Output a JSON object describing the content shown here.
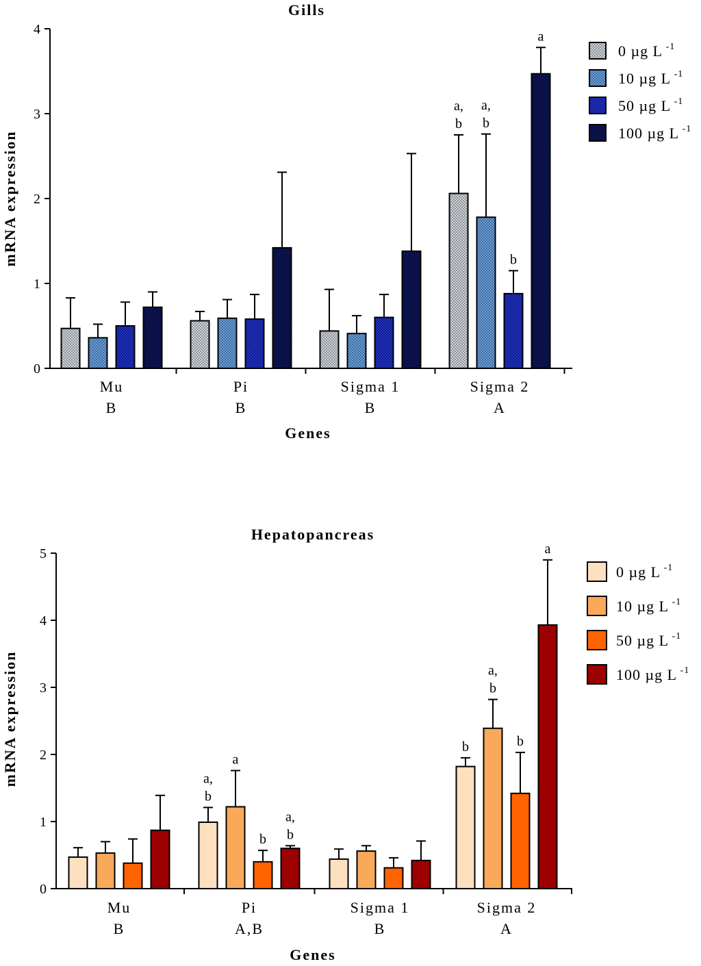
{
  "palettes": {
    "gills": [
      "#cfd3d6",
      "#5f8fc4",
      "#1c2bb0",
      "#0b1350"
    ],
    "hepato": [
      "#fde0c0",
      "#f9a95a",
      "#ff6400",
      "#9c0000"
    ]
  },
  "chart_data": [
    {
      "type": "bar",
      "title": "Gills",
      "xlabel": "Genes",
      "ylabel": "mRNA expression",
      "ylim": [
        0,
        4
      ],
      "yticks": [
        "0",
        "1",
        "2",
        "3",
        "4"
      ],
      "legend_position": "top-right",
      "legend": [
        {
          "prefix": "0 µg L",
          "sup": "-1"
        },
        {
          "prefix": "10 µg L",
          "sup": "-1"
        },
        {
          "prefix": "50 µg L",
          "sup": "-1"
        },
        {
          "prefix": "100 µg L",
          "sup": "-1"
        }
      ],
      "categories": [
        "Mu",
        "Pi",
        "Sigma 1",
        "Sigma 2"
      ],
      "category_groups": [
        "B",
        "B",
        "B",
        "A"
      ],
      "series": [
        {
          "name": "0 µg L-1",
          "values": [
            0.47,
            0.56,
            0.44,
            2.06
          ],
          "errors": [
            0.36,
            0.11,
            0.49,
            0.69
          ],
          "labels": [
            "",
            "",
            "",
            "a,|b"
          ]
        },
        {
          "name": "10 µg L-1",
          "values": [
            0.36,
            0.59,
            0.41,
            1.78
          ],
          "errors": [
            0.16,
            0.22,
            0.21,
            0.98
          ],
          "labels": [
            "",
            "",
            "",
            "a,|b"
          ]
        },
        {
          "name": "50 µg L-1",
          "values": [
            0.5,
            0.58,
            0.6,
            0.88
          ],
          "errors": [
            0.28,
            0.29,
            0.27,
            0.27
          ],
          "labels": [
            "",
            "",
            "",
            "b"
          ]
        },
        {
          "name": "100 µg L-1",
          "values": [
            0.72,
            1.42,
            1.38,
            3.47
          ],
          "errors": [
            0.18,
            0.89,
            1.15,
            0.31
          ],
          "labels": [
            "",
            "",
            "",
            "a"
          ]
        }
      ]
    },
    {
      "type": "bar",
      "title": "Hepatopancreas",
      "xlabel": "Genes",
      "ylabel": "mRNA expression",
      "ylim": [
        0,
        5
      ],
      "yticks": [
        "0",
        "1",
        "2",
        "3",
        "4",
        "5"
      ],
      "legend_position": "top-right",
      "legend": [
        {
          "prefix": "0 µg L",
          "sup": "-1"
        },
        {
          "prefix": "10 µg L",
          "sup": "-1"
        },
        {
          "prefix": "50 µg L",
          "sup": "-1"
        },
        {
          "prefix": "100 µg L",
          "sup": "-1"
        }
      ],
      "categories": [
        "Mu",
        "Pi",
        "Sigma 1",
        "Sigma 2"
      ],
      "category_groups": [
        "B",
        "A,B",
        "B",
        "A"
      ],
      "series": [
        {
          "name": "0 µg L-1",
          "values": [
            0.47,
            0.99,
            0.44,
            1.82
          ],
          "errors": [
            0.14,
            0.22,
            0.15,
            0.13
          ],
          "labels": [
            "",
            "a,|b",
            "",
            "b"
          ]
        },
        {
          "name": "10 µg L-1",
          "values": [
            0.53,
            1.22,
            0.56,
            2.39
          ],
          "errors": [
            0.17,
            0.54,
            0.08,
            0.43
          ],
          "labels": [
            "",
            "a",
            "",
            "a,|b"
          ]
        },
        {
          "name": "50 µg L-1",
          "values": [
            0.38,
            0.4,
            0.31,
            1.42
          ],
          "errors": [
            0.36,
            0.17,
            0.15,
            0.61
          ],
          "labels": [
            "",
            "b",
            "",
            "b"
          ]
        },
        {
          "name": "100 µg L-1",
          "values": [
            0.87,
            0.6,
            0.42,
            3.93
          ],
          "errors": [
            0.52,
            0.04,
            0.29,
            0.97
          ],
          "labels": [
            "",
            "a,|b",
            "",
            "a"
          ]
        }
      ]
    }
  ]
}
